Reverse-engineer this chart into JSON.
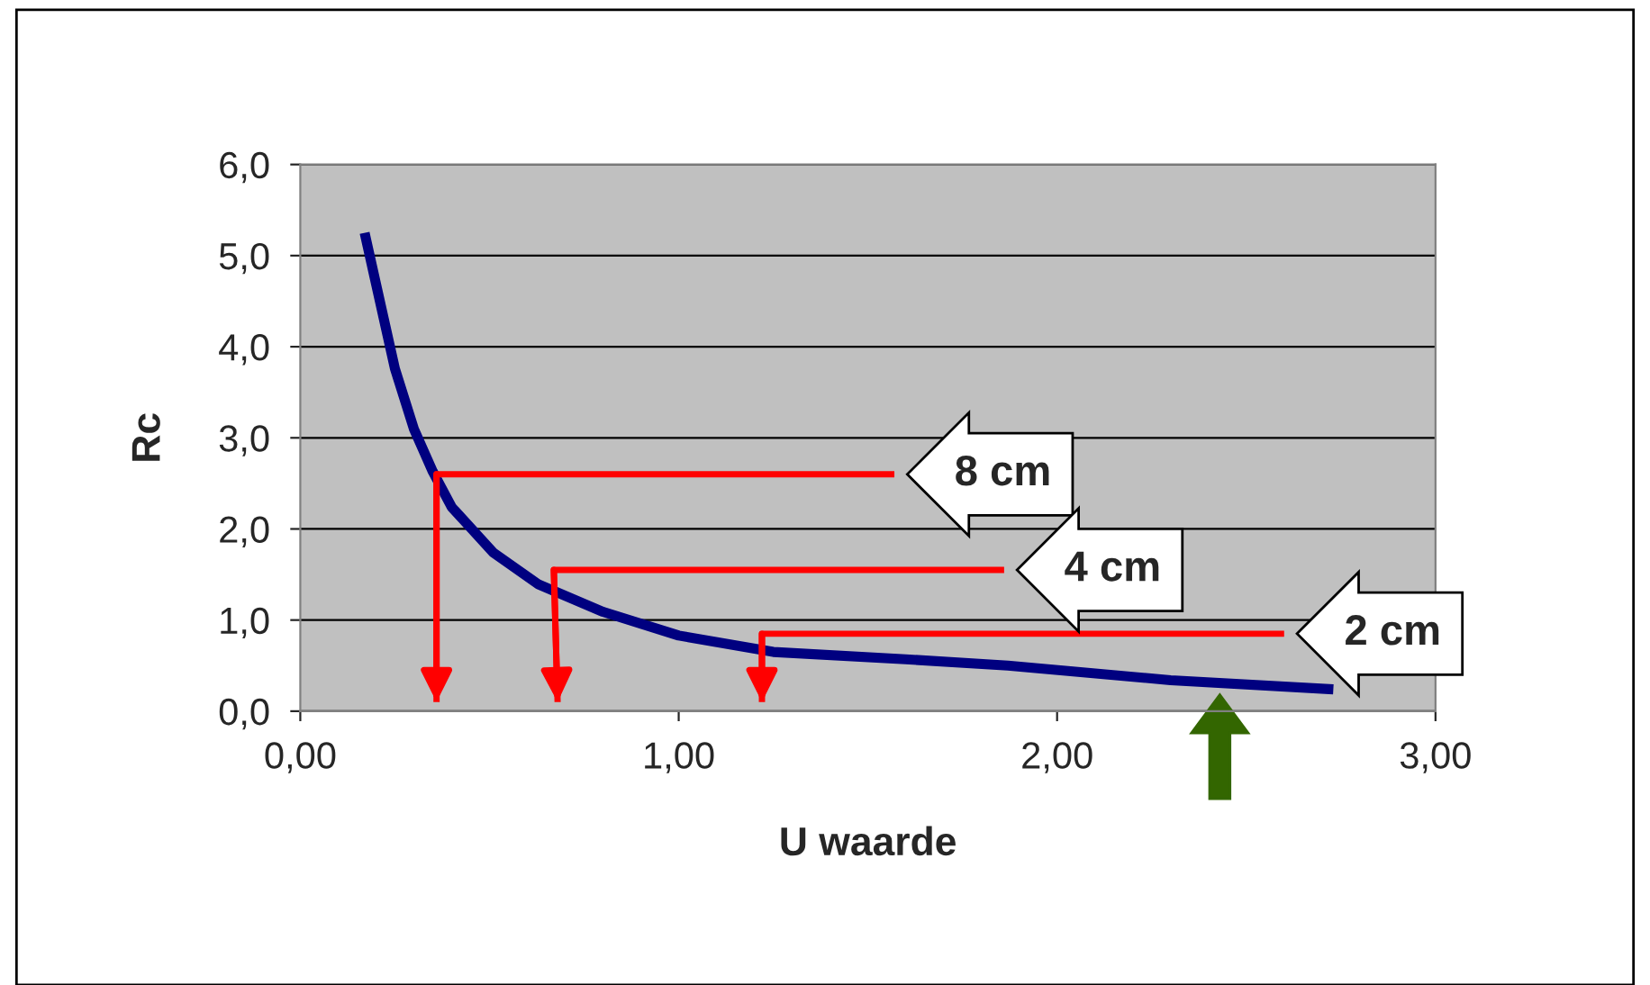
{
  "chart_data": {
    "type": "line",
    "xlabel": "U waarde",
    "ylabel": "Rc",
    "xlim": [
      0,
      3
    ],
    "ylim": [
      0,
      6
    ],
    "xticks": [
      {
        "value": 0,
        "label": "0,00"
      },
      {
        "value": 1,
        "label": "1,00"
      },
      {
        "value": 2,
        "label": "2,00"
      },
      {
        "value": 3,
        "label": "3,00"
      }
    ],
    "yticks": [
      {
        "value": 0,
        "label": "0,0"
      },
      {
        "value": 1,
        "label": "1,0"
      },
      {
        "value": 2,
        "label": "2,0"
      },
      {
        "value": 3,
        "label": "3,0"
      },
      {
        "value": 4,
        "label": "4,0"
      },
      {
        "value": 5,
        "label": "5,0"
      },
      {
        "value": 6,
        "label": "6,0"
      }
    ],
    "grid": "y",
    "series": [
      {
        "color": "#000080",
        "x": [
          0.17,
          0.25,
          0.3,
          0.35,
          0.4,
          0.51,
          0.63,
          0.8,
          1.0,
          1.25,
          1.6,
          1.87,
          2.3,
          2.73
        ],
        "values": [
          5.25,
          3.76,
          3.1,
          2.63,
          2.24,
          1.74,
          1.39,
          1.09,
          0.83,
          0.65,
          0.57,
          0.5,
          0.34,
          0.24
        ]
      },
      {
        "color": "#ff0000",
        "x": [
          1.57,
          0.36,
          0.36
        ],
        "values": [
          2.6,
          2.6,
          0.1
        ]
      },
      {
        "color": "#ff0000",
        "x": [
          1.86,
          0.67,
          0.68
        ],
        "values": [
          1.55,
          1.55,
          0.1
        ]
      },
      {
        "color": "#ff0000",
        "x": [
          2.6,
          1.22,
          1.22
        ],
        "values": [
          0.85,
          0.85,
          0.1
        ]
      }
    ],
    "annotations": [
      {
        "text": "8 cm",
        "x": 1.57,
        "y": 2.6
      },
      {
        "text": "4 cm",
        "x": 1.86,
        "y": 1.55
      },
      {
        "text": "2 cm",
        "x": 2.6,
        "y": 0.85
      }
    ]
  }
}
